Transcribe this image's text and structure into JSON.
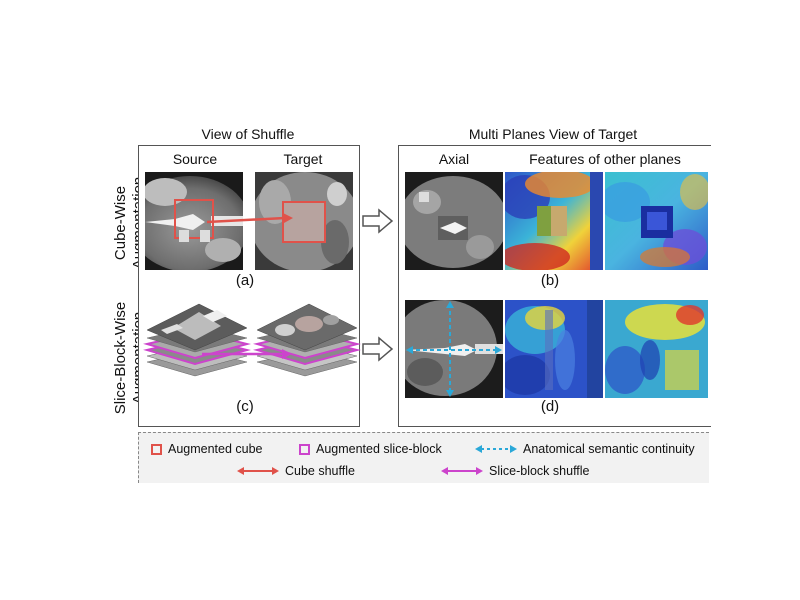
{
  "left_panel": {
    "title": "View of Shuffle",
    "col_source": "Source",
    "col_target": "Target",
    "label_a": "(a)",
    "label_c": "(c)"
  },
  "right_panel": {
    "title": "Multi Planes View of Target",
    "col_axial": "Axial",
    "col_other": "Features of other planes",
    "label_b": "(b)",
    "label_d": "(d)"
  },
  "rows": {
    "row1_line1": "Cube-Wise",
    "row1_line2": "Augmentation",
    "row2_line1": "Slice-Block-Wise",
    "row2_line2": "Augmentation"
  },
  "legend": {
    "augmented_cube": "Augmented cube",
    "augmented_slice_block": "Augmented slice-block",
    "anatomical_continuity": "Anatomical semantic continuity",
    "cube_shuffle": "Cube shuffle",
    "slice_block_shuffle": "Slice-block shuffle"
  },
  "colors": {
    "cube": "#e0524a",
    "slice_block": "#cc44cc",
    "continuity": "#2aa8d8"
  }
}
